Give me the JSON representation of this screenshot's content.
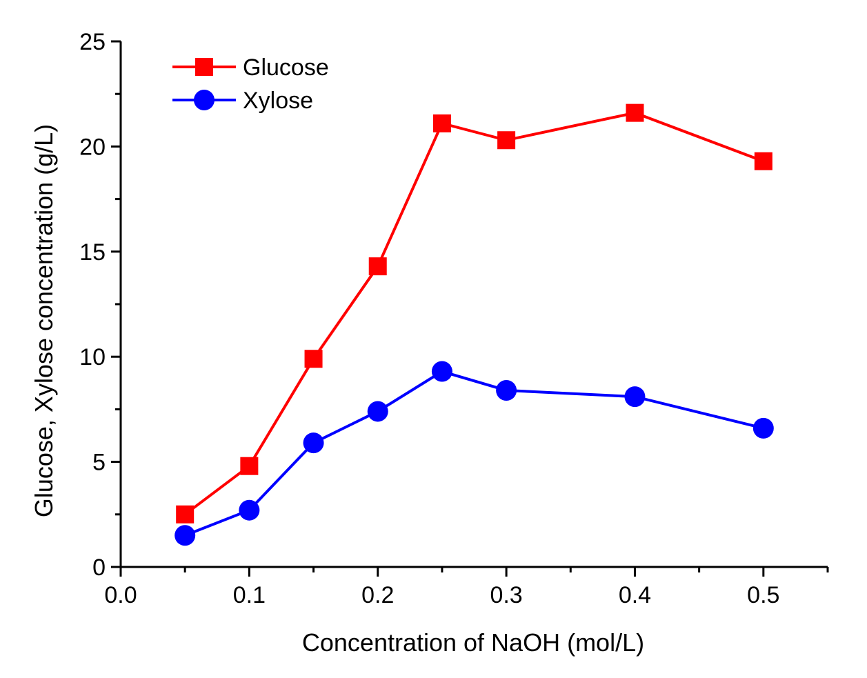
{
  "chart_data": {
    "type": "line",
    "xlabel": "Concentration of NaOH (mol/L)",
    "ylabel": "Glucose, Xylose concentration (g/L)",
    "xlim": [
      0.0,
      0.55
    ],
    "ylim": [
      0,
      25
    ],
    "x_ticks": [
      0.0,
      0.1,
      0.2,
      0.3,
      0.4,
      0.5
    ],
    "x_tick_labels": [
      "0.0",
      "0.1",
      "0.2",
      "0.3",
      "0.4",
      "0.5"
    ],
    "y_ticks": [
      0,
      5,
      10,
      15,
      20,
      25
    ],
    "y_tick_labels": [
      "0",
      "5",
      "10",
      "15",
      "20",
      "25"
    ],
    "grid": false,
    "legend_position": "top-left",
    "x": [
      0.05,
      0.1,
      0.15,
      0.2,
      0.25,
      0.3,
      0.4,
      0.5
    ],
    "series": [
      {
        "name": "Glucose",
        "color": "#ff0000",
        "marker": "square",
        "values": [
          2.5,
          4.8,
          9.9,
          14.3,
          21.1,
          20.3,
          21.6,
          19.3
        ]
      },
      {
        "name": "Xylose",
        "color": "#0000ff",
        "marker": "circle",
        "values": [
          1.5,
          2.7,
          5.9,
          7.4,
          9.3,
          8.4,
          8.1,
          6.6
        ]
      }
    ]
  }
}
